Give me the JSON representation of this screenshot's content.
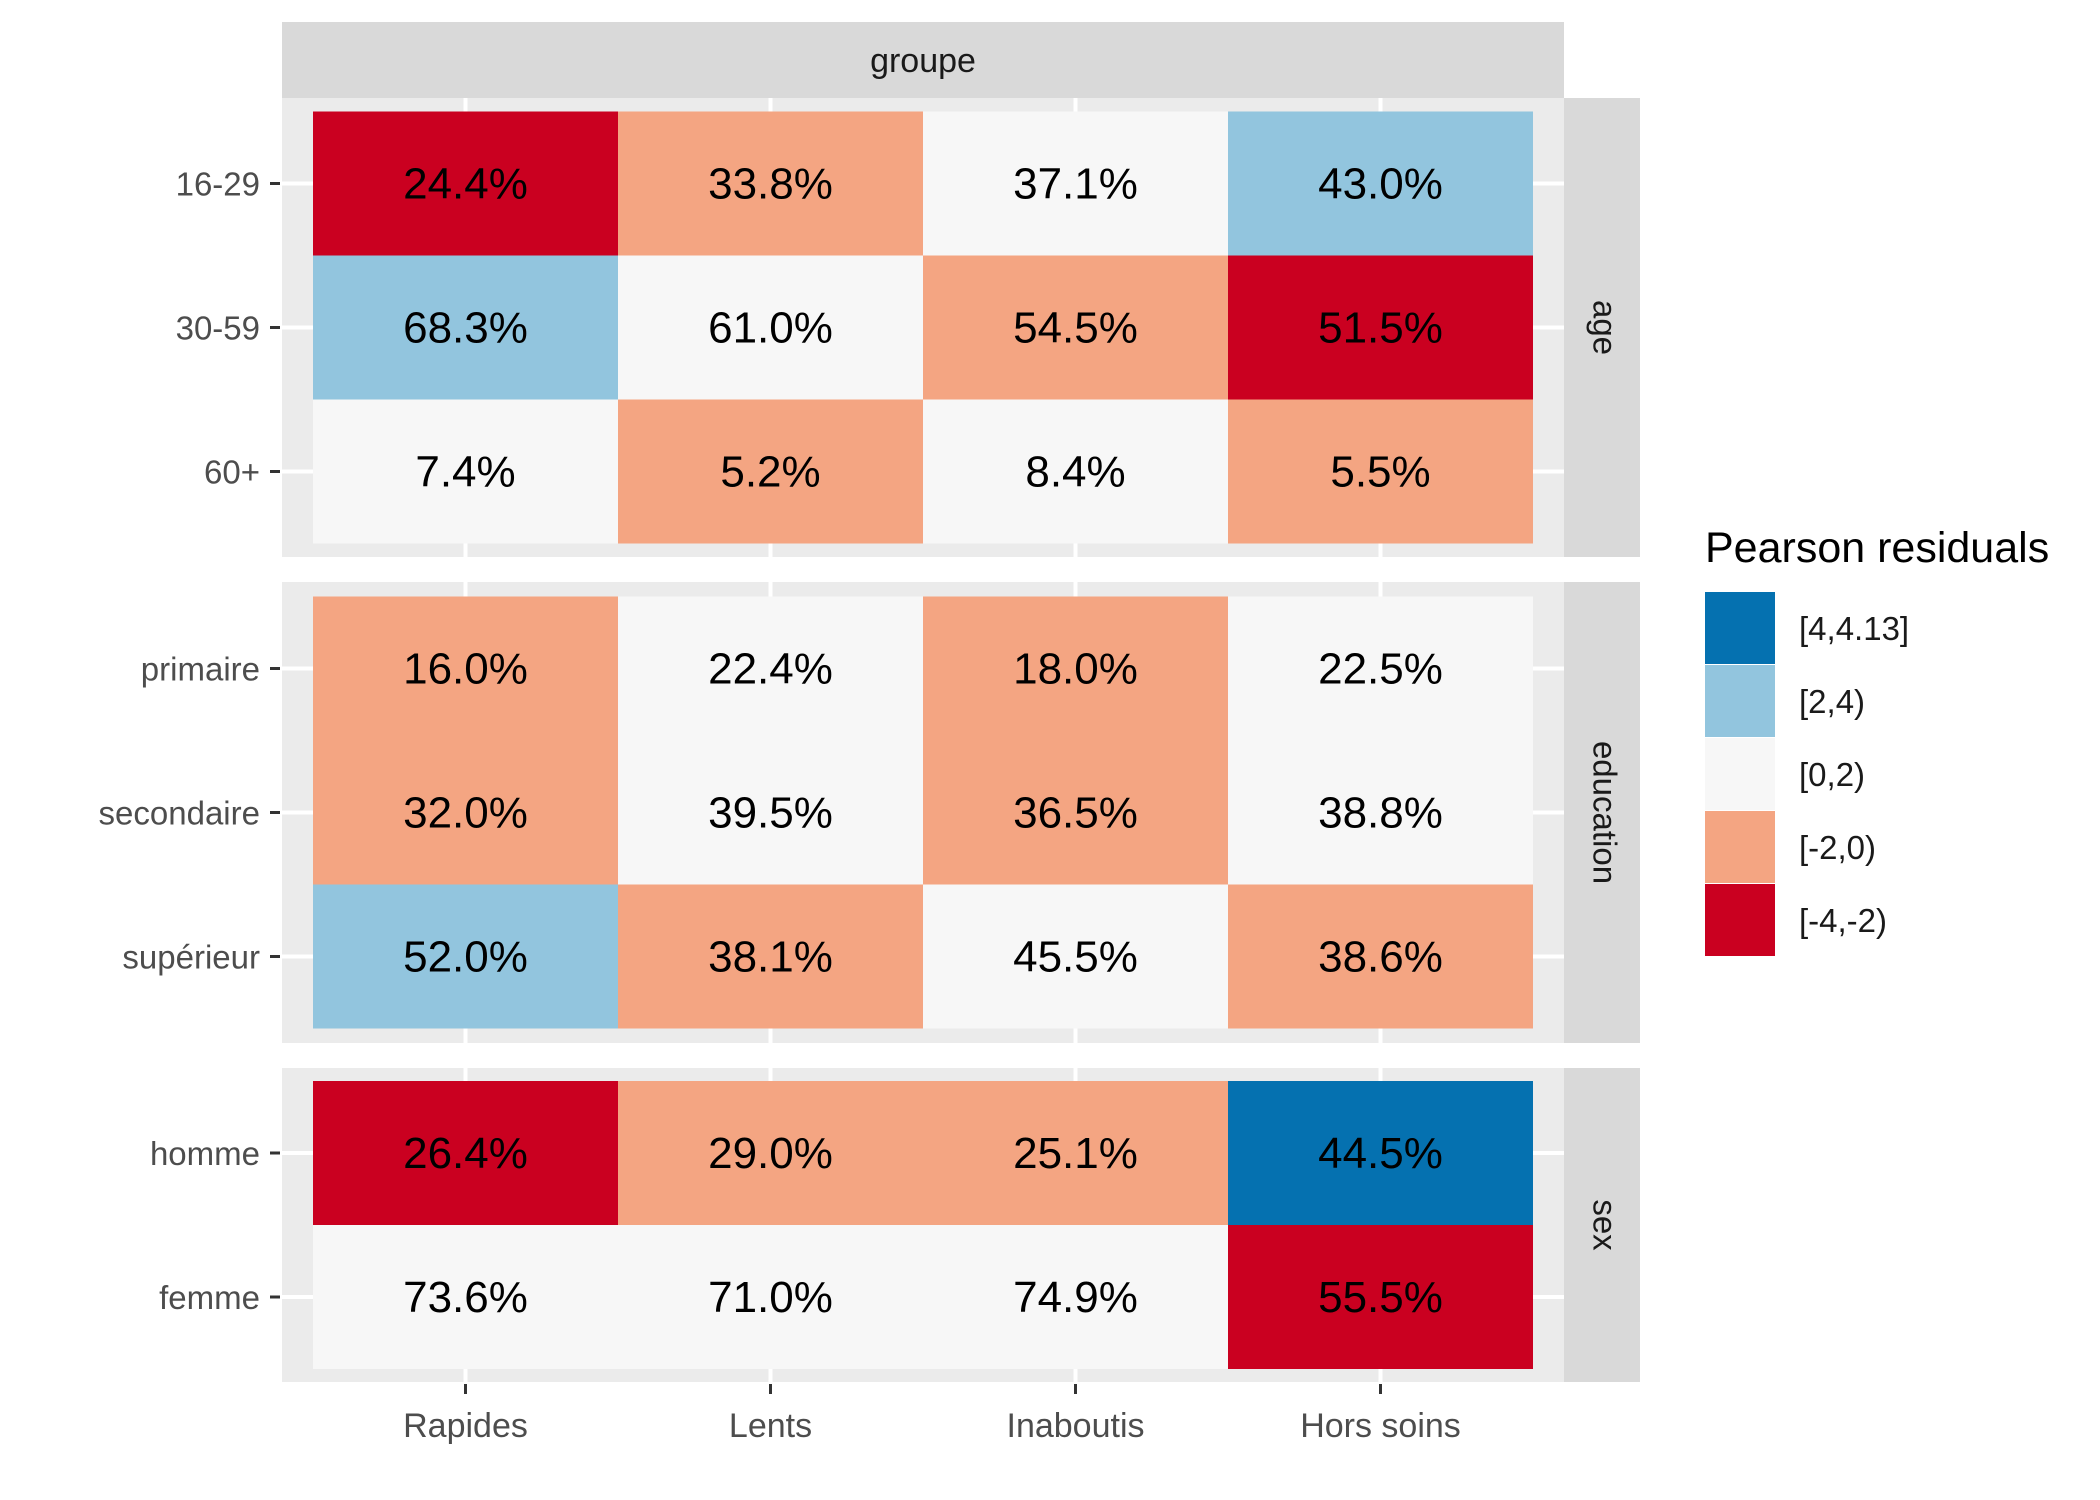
{
  "chart_data": {
    "type": "heatmap",
    "top_strip": "groupe",
    "columns": [
      "Rapides",
      "Lents",
      "Inaboutis",
      "Hors soins"
    ],
    "panels": [
      {
        "name": "age",
        "rows": [
          "16-29",
          "30-59",
          "60+"
        ],
        "labels": [
          [
            "24.4%",
            "33.8%",
            "37.1%",
            "43.0%"
          ],
          [
            "68.3%",
            "61.0%",
            "54.5%",
            "51.5%"
          ],
          [
            "7.4%",
            "5.2%",
            "8.4%",
            "5.5%"
          ]
        ],
        "bins": [
          [
            "[-4,-2)",
            "[-2,0)",
            "[0,2)",
            "[2,4)"
          ],
          [
            "[2,4)",
            "[0,2)",
            "[-2,0)",
            "[-4,-2)"
          ],
          [
            "[0,2)",
            "[-2,0)",
            "[0,2)",
            "[-2,0)"
          ]
        ]
      },
      {
        "name": "education",
        "rows": [
          "primaire",
          "secondaire",
          "supérieur"
        ],
        "labels": [
          [
            "16.0%",
            "22.4%",
            "18.0%",
            "22.5%"
          ],
          [
            "32.0%",
            "39.5%",
            "36.5%",
            "38.8%"
          ],
          [
            "52.0%",
            "38.1%",
            "45.5%",
            "38.6%"
          ]
        ],
        "bins": [
          [
            "[-2,0)",
            "[0,2)",
            "[-2,0)",
            "[0,2)"
          ],
          [
            "[-2,0)",
            "[0,2)",
            "[-2,0)",
            "[0,2)"
          ],
          [
            "[2,4)",
            "[-2,0)",
            "[0,2)",
            "[-2,0)"
          ]
        ]
      },
      {
        "name": "sex",
        "rows": [
          "homme",
          "femme"
        ],
        "labels": [
          [
            "26.4%",
            "29.0%",
            "25.1%",
            "44.5%"
          ],
          [
            "73.6%",
            "71.0%",
            "74.9%",
            "55.5%"
          ]
        ],
        "bins": [
          [
            "[-4,-2)",
            "[-2,0)",
            "[-2,0)",
            "[4,4.13]"
          ],
          [
            "[0,2)",
            "[0,2)",
            "[0,2)",
            "[-4,-2)"
          ]
        ]
      }
    ],
    "legend": {
      "title": "Pearson residuals",
      "position": "right",
      "items": [
        {
          "label": "[4,4.13]",
          "color": "#0571b0"
        },
        {
          "label": "[2,4)",
          "color": "#92c5de"
        },
        {
          "label": "[0,2)",
          "color": "#f7f7f7"
        },
        {
          "label": "[-2,0)",
          "color": "#f4a582"
        },
        {
          "label": "[-4,-2)",
          "color": "#ca0020"
        }
      ]
    },
    "grid": true
  }
}
